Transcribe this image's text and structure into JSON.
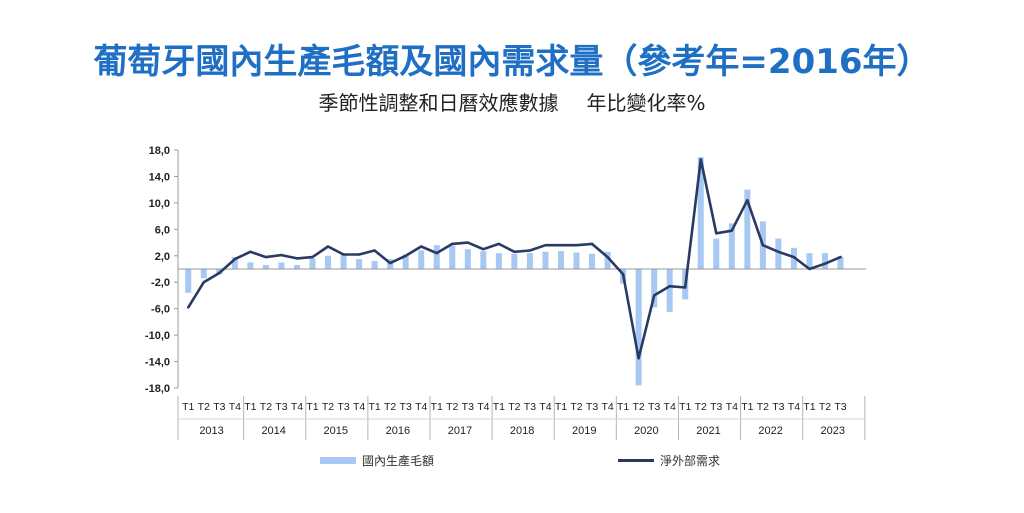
{
  "header": {
    "title": "葡萄牙國內生產毛額及國內需求量（參考年=2016年）",
    "subtitle_main": "季節性調整和日曆效應數據",
    "subtitle_unit": "年比變化率%"
  },
  "colors": {
    "bar": "#a6c8f2",
    "line": "#2b3a63",
    "title": "#1f6fc5"
  },
  "chart_data": {
    "type": "bar",
    "quarters": [
      "T1",
      "T2",
      "T3",
      "T4"
    ],
    "years": [
      "2013",
      "2014",
      "2015",
      "2016",
      "2017",
      "2018",
      "2019",
      "2020",
      "2021",
      "2022",
      "2023"
    ],
    "ylim": [
      -18,
      18
    ],
    "yticks": [
      "18,0",
      "14,0",
      "10,0",
      "6,0",
      "2,0",
      "-2,0",
      "-6,0",
      "-10,0",
      "-14,0",
      "-18,0"
    ],
    "ytick_values": [
      18,
      14,
      10,
      6,
      2,
      -2,
      -6,
      -10,
      -14,
      -18
    ],
    "series": [
      {
        "name": "國內生產毛額",
        "type": "bar",
        "values": [
          -3.6,
          -1.4,
          -0.8,
          1.8,
          1.0,
          0.6,
          1.0,
          0.6,
          1.6,
          2.0,
          2.2,
          1.5,
          1.2,
          1.5,
          2.2,
          2.8,
          3.6,
          3.5,
          3.0,
          2.7,
          2.4,
          2.3,
          2.4,
          2.6,
          2.7,
          2.5,
          2.3,
          2.6,
          -2.2,
          -17.6,
          -5.8,
          -6.5,
          -4.6,
          16.9,
          4.6,
          6.9,
          12.0,
          7.2,
          4.6,
          3.2,
          2.4,
          2.4,
          1.8
        ]
      },
      {
        "name": "淨外部需求",
        "type": "line",
        "values": [
          -5.8,
          -2.0,
          -0.6,
          1.5,
          2.6,
          1.8,
          2.1,
          1.6,
          1.8,
          3.4,
          2.2,
          2.2,
          2.8,
          0.9,
          2.0,
          3.4,
          2.4,
          3.8,
          4.0,
          3.0,
          3.8,
          2.6,
          2.8,
          3.6,
          3.6,
          3.6,
          3.8,
          1.8,
          -0.8,
          -13.5,
          -4.0,
          -2.6,
          -2.8,
          16.6,
          5.4,
          5.8,
          10.4,
          3.6,
          2.6,
          1.8,
          0.0,
          0.8,
          1.8
        ]
      }
    ],
    "legend_position": "bottom"
  }
}
